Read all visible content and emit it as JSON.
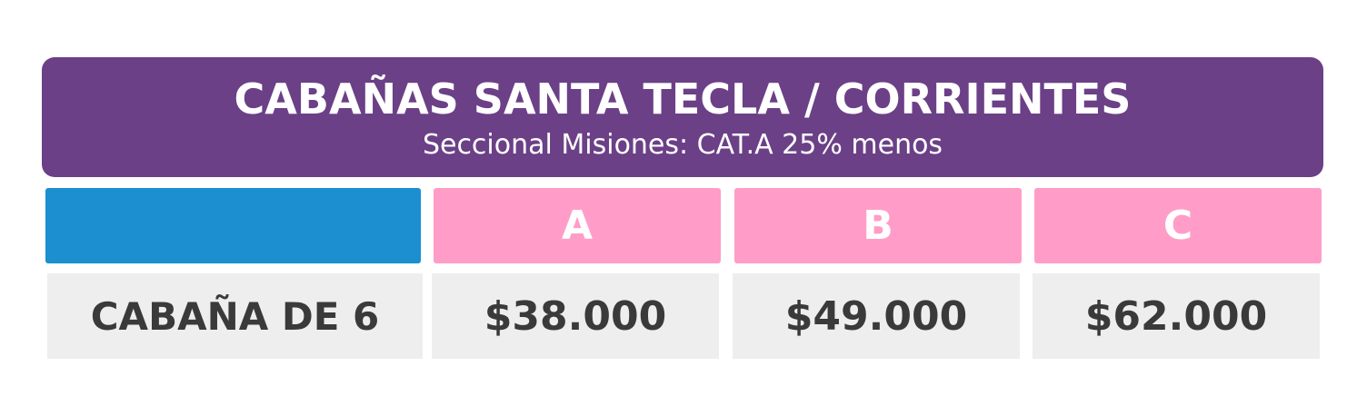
{
  "header": {
    "title": "CABAÑAS SANTA TECLA / CORRIENTES",
    "subtitle": "Seccional Misiones: CAT.A 25% menos"
  },
  "table": {
    "columns": [
      "A",
      "B",
      "C"
    ],
    "rows": [
      [
        "CABAÑA DE 6",
        "$38.000",
        "$49.000",
        "$62.000"
      ]
    ]
  }
}
